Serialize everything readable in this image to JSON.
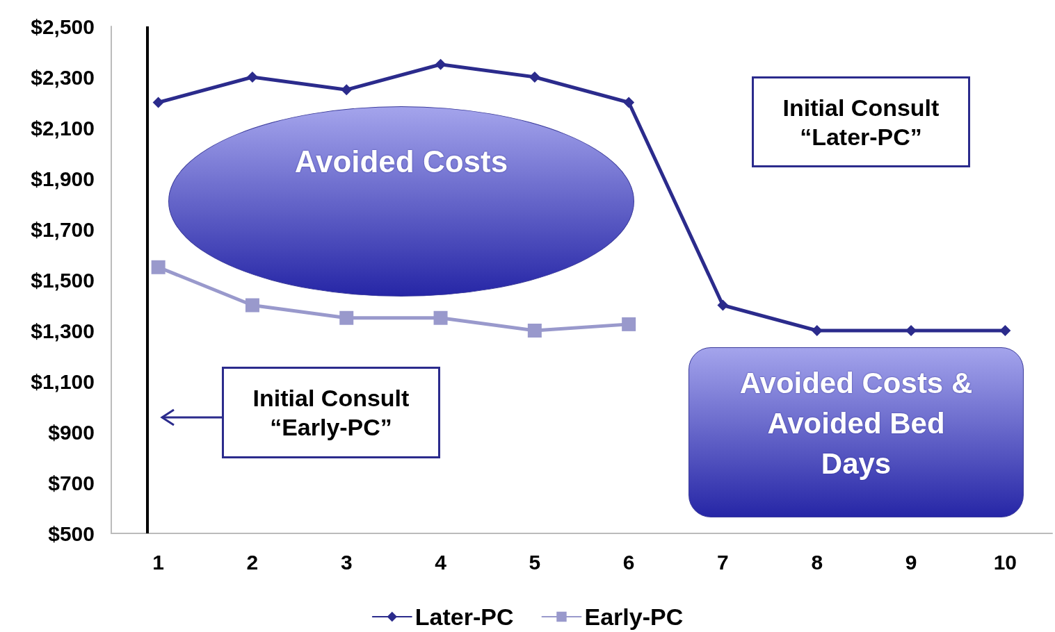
{
  "chart_data": {
    "type": "line",
    "x": [
      1,
      2,
      3,
      4,
      5,
      6,
      7,
      8,
      9,
      10
    ],
    "series": [
      {
        "name": "Later-PC",
        "color": "#2b2b8c",
        "marker": "diamond",
        "values": [
          2200,
          2300,
          2250,
          2350,
          2300,
          2200,
          1400,
          1300,
          1300,
          1300
        ]
      },
      {
        "name": "Early-PC",
        "color": "#9999cc",
        "marker": "square",
        "values": [
          1550,
          1400,
          1350,
          1350,
          1300,
          1325,
          null,
          null,
          null,
          null
        ]
      }
    ],
    "xlim": [
      0.5,
      10.5
    ],
    "xticks": [
      1,
      2,
      3,
      4,
      5,
      6,
      7,
      8,
      9,
      10
    ],
    "ylim": [
      500,
      2500
    ],
    "yticks": [
      {
        "value": 500,
        "label": "$500"
      },
      {
        "value": 700,
        "label": "$700"
      },
      {
        "value": 900,
        "label": "$900"
      },
      {
        "value": 1100,
        "label": "$1,100"
      },
      {
        "value": 1300,
        "label": "$1,300"
      },
      {
        "value": 1500,
        "label": "$1,500"
      },
      {
        "value": 1700,
        "label": "$1,700"
      },
      {
        "value": 1900,
        "label": "$1,900"
      },
      {
        "value": 2100,
        "label": "$2,100"
      },
      {
        "value": 2300,
        "label": "$2,300"
      },
      {
        "value": 2500,
        "label": "$2,500"
      }
    ],
    "ref_lines": [
      {
        "axis": "x",
        "value": 0.88,
        "color": "#000000"
      }
    ],
    "annotations": [
      "Avoided Costs",
      "Avoided Costs &\nAvoided Bed\nDays",
      "Initial Consult\n“Later-PC”",
      "Initial Consult\n“Early-PC”"
    ],
    "grid": false,
    "legend": "bottom",
    "line_style": "solid"
  }
}
